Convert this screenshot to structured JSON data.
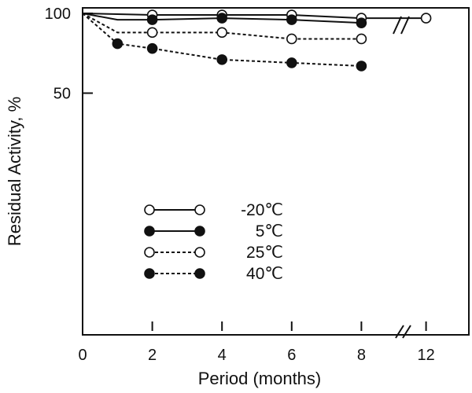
{
  "chart_data": {
    "type": "line",
    "title": "",
    "xlabel": "Period (months)",
    "ylabel": "Residual Activity, %",
    "xlim": [
      0,
      12.5
    ],
    "ylim": [
      0,
      100
    ],
    "x_ticks": [
      {
        "value": 0,
        "label": "0"
      },
      {
        "value": 2,
        "label": "2"
      },
      {
        "value": 4,
        "label": "4"
      },
      {
        "value": 6,
        "label": "6"
      },
      {
        "value": 8,
        "label": "8"
      },
      {
        "value": 12,
        "label": "12"
      }
    ],
    "y_ticks": [
      {
        "value": 100,
        "label": "100"
      },
      {
        "value": 50,
        "label": "50"
      }
    ],
    "axis_break": "between 8 and 12 months (x-axis)",
    "grid": false,
    "legend_position": "center-left",
    "series": [
      {
        "name": "-20℃",
        "marker": "open-circle",
        "line": "solid",
        "points": [
          [
            0,
            100
          ],
          [
            2,
            99
          ],
          [
            4,
            99
          ],
          [
            6,
            99
          ],
          [
            8,
            97
          ],
          [
            12,
            97
          ]
        ]
      },
      {
        "name": "5℃",
        "marker": "filled-circle",
        "line": "solid",
        "points": [
          [
            0,
            100
          ],
          [
            1,
            96
          ],
          [
            2,
            96
          ],
          [
            4,
            97
          ],
          [
            6,
            96
          ],
          [
            8,
            94
          ]
        ]
      },
      {
        "name": "25℃",
        "marker": "open-circle",
        "line": "dashed",
        "points": [
          [
            0,
            100
          ],
          [
            1,
            88
          ],
          [
            2,
            88
          ],
          [
            4,
            88
          ],
          [
            6,
            84
          ],
          [
            8,
            84
          ]
        ]
      },
      {
        "name": "40℃",
        "marker": "filled-circle",
        "line": "dashed",
        "points": [
          [
            0,
            100
          ],
          [
            1,
            81
          ],
          [
            2,
            78
          ],
          [
            4,
            71
          ],
          [
            6,
            69
          ],
          [
            8,
            67
          ]
        ]
      }
    ]
  }
}
